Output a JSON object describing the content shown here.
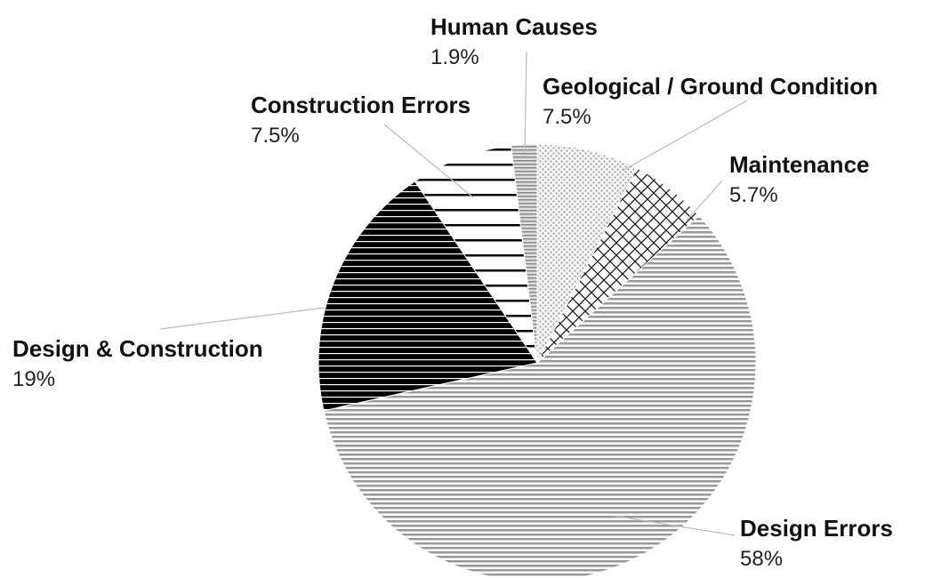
{
  "chart_data": {
    "type": "pie",
    "categories": [
      "Geological / Ground Condition",
      "Maintenance",
      "Design Errors",
      "Design & Construction",
      "Construction Errors",
      "Human Causes"
    ],
    "values": [
      7.5,
      5.7,
      58,
      19,
      7.5,
      1.9
    ],
    "value_labels": [
      "7.5%",
      "5.7%",
      "58%",
      "19%",
      "7.5%",
      "1.9%"
    ]
  }
}
